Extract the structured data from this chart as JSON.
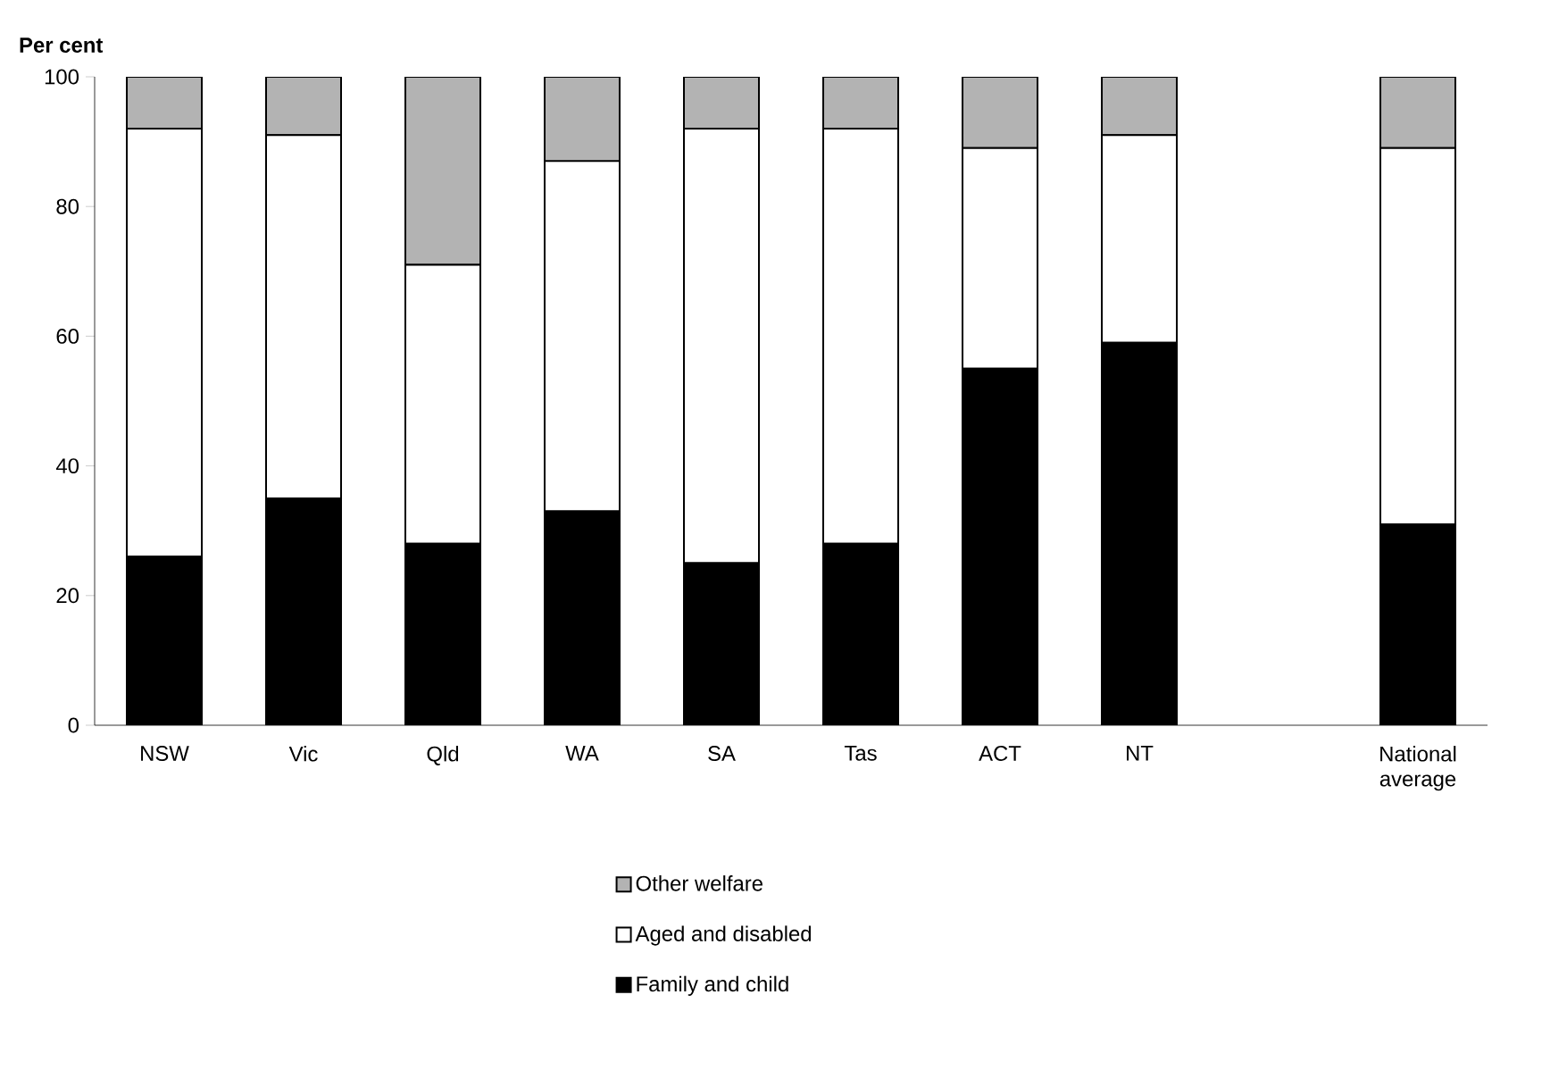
{
  "chart_data": {
    "type": "bar",
    "ylabel": "Per cent",
    "stacked": true,
    "legend": "bottom",
    "categories": [
      "NSW",
      "Vic",
      "Qld",
      "WA",
      "SA",
      "Tas",
      "ACT",
      "NT",
      null,
      "National average"
    ],
    "ylim": [
      0,
      100
    ],
    "yticks": [
      0,
      20,
      40,
      60,
      80,
      100
    ],
    "series": [
      {
        "name": "Family and child",
        "color": "#000000",
        "values": [
          26,
          35,
          28,
          33,
          25,
          28,
          55,
          59,
          null,
          31
        ]
      },
      {
        "name": "Aged and disabled",
        "color": "#ffffff",
        "values": [
          66,
          56,
          43,
          54,
          67,
          64,
          34,
          32,
          null,
          58
        ]
      },
      {
        "name": "Other welfare",
        "color": "#b3b3b3",
        "values": [
          8,
          9,
          29,
          13,
          8,
          8,
          11,
          9,
          null,
          11
        ]
      }
    ]
  }
}
